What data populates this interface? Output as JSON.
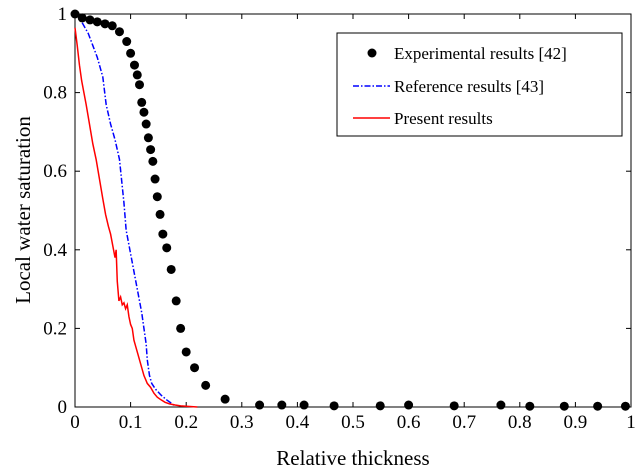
{
  "chart_data": {
    "type": "line",
    "title": "",
    "xlabel": "Relative thickness",
    "ylabel": "Local water saturation",
    "xlim": [
      0,
      1
    ],
    "ylim": [
      0,
      1
    ],
    "xticks": [
      0,
      0.1,
      0.2,
      0.3,
      0.4,
      0.5,
      0.6,
      0.7,
      0.8,
      0.9,
      1
    ],
    "yticks": [
      0,
      0.2,
      0.4,
      0.6,
      0.8,
      1
    ],
    "xtick_labels": [
      "0",
      "0.1",
      "0.2",
      "0.3",
      "0.4",
      "0.5",
      "0.6",
      "0.7",
      "0.8",
      "0.9",
      "1"
    ],
    "ytick_labels": [
      "0",
      "0.2",
      "0.4",
      "0.6",
      "0.8",
      "1"
    ],
    "grid": false,
    "legend_position": "top-right",
    "series": [
      {
        "name": "Experimental results [42]",
        "kind": "scatter",
        "color": "#000000",
        "marker": "filled-circle",
        "x": [
          0.0,
          0.013,
          0.027,
          0.04,
          0.054,
          0.067,
          0.08,
          0.093,
          0.1,
          0.107,
          0.112,
          0.116,
          0.12,
          0.124,
          0.128,
          0.132,
          0.136,
          0.14,
          0.144,
          0.148,
          0.153,
          0.158,
          0.165,
          0.173,
          0.182,
          0.19,
          0.2,
          0.215,
          0.235,
          0.27,
          0.332,
          0.372,
          0.412,
          0.466,
          0.549,
          0.6,
          0.682,
          0.766,
          0.818,
          0.88,
          0.94,
          0.99
        ],
        "y": [
          1.0,
          0.99,
          0.985,
          0.98,
          0.975,
          0.97,
          0.955,
          0.93,
          0.9,
          0.87,
          0.845,
          0.82,
          0.775,
          0.75,
          0.72,
          0.685,
          0.655,
          0.625,
          0.58,
          0.535,
          0.49,
          0.44,
          0.405,
          0.35,
          0.27,
          0.2,
          0.14,
          0.1,
          0.055,
          0.02,
          0.005,
          0.005,
          0.005,
          0.003,
          0.003,
          0.005,
          0.003,
          0.005,
          0.002,
          0.002,
          0.002,
          0.002
        ]
      },
      {
        "name": "Reference results [43]",
        "kind": "line",
        "color": "#0000ff",
        "dash": "dashdot",
        "x": [
          0.0,
          0.008,
          0.016,
          0.024,
          0.032,
          0.04,
          0.046,
          0.05,
          0.056,
          0.064,
          0.072,
          0.08,
          0.088,
          0.092,
          0.096,
          0.1,
          0.104,
          0.108,
          0.112,
          0.116,
          0.12,
          0.124,
          0.128,
          0.13,
          0.132,
          0.134,
          0.138,
          0.145,
          0.155,
          0.165,
          0.175,
          0.18
        ],
        "y": [
          1.0,
          0.99,
          0.97,
          0.95,
          0.92,
          0.89,
          0.86,
          0.84,
          0.77,
          0.72,
          0.68,
          0.63,
          0.52,
          0.45,
          0.42,
          0.39,
          0.36,
          0.33,
          0.3,
          0.27,
          0.24,
          0.2,
          0.16,
          0.12,
          0.1,
          0.08,
          0.06,
          0.045,
          0.03,
          0.018,
          0.008,
          0.002
        ]
      },
      {
        "name": "Present results",
        "kind": "line",
        "color": "#ff0000",
        "dash": "solid",
        "x": [
          0.0,
          0.004,
          0.008,
          0.012,
          0.016,
          0.02,
          0.026,
          0.032,
          0.038,
          0.044,
          0.05,
          0.055,
          0.06,
          0.064,
          0.068,
          0.072,
          0.074,
          0.076,
          0.079,
          0.082,
          0.085,
          0.088,
          0.091,
          0.094,
          0.097,
          0.1,
          0.103,
          0.106,
          0.109,
          0.112,
          0.116,
          0.12,
          0.124,
          0.13,
          0.136,
          0.142,
          0.148,
          0.155,
          0.162,
          0.17,
          0.18,
          0.19,
          0.2,
          0.21,
          0.22
        ],
        "y": [
          0.965,
          0.92,
          0.87,
          0.83,
          0.8,
          0.77,
          0.72,
          0.67,
          0.63,
          0.58,
          0.53,
          0.49,
          0.46,
          0.44,
          0.41,
          0.38,
          0.4,
          0.32,
          0.27,
          0.28,
          0.26,
          0.265,
          0.25,
          0.26,
          0.23,
          0.21,
          0.2,
          0.17,
          0.155,
          0.14,
          0.12,
          0.1,
          0.08,
          0.06,
          0.05,
          0.035,
          0.025,
          0.018,
          0.012,
          0.008,
          0.005,
          0.003,
          0.002,
          0.001,
          0.0
        ]
      }
    ]
  }
}
